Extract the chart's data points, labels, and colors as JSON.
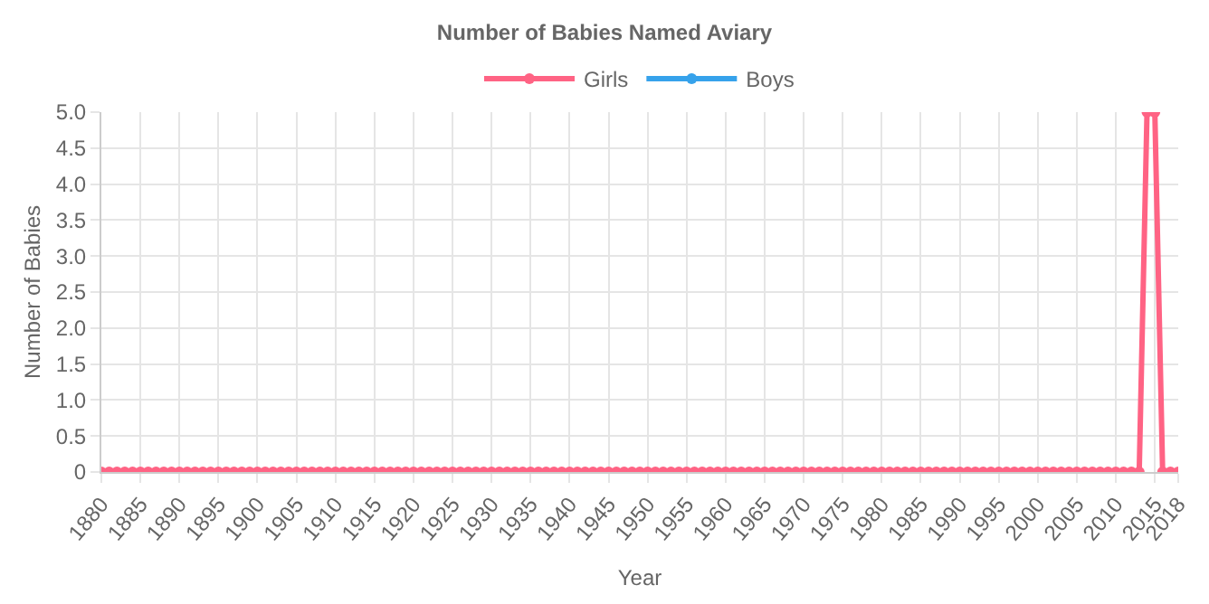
{
  "chart_data": {
    "type": "line",
    "title": "Number of Babies Named Aviary",
    "xlabel": "Year",
    "ylabel": "Number of Babies",
    "x": [
      1880,
      1881,
      1882,
      1883,
      1884,
      1885,
      1886,
      1887,
      1888,
      1889,
      1890,
      1891,
      1892,
      1893,
      1894,
      1895,
      1896,
      1897,
      1898,
      1899,
      1900,
      1901,
      1902,
      1903,
      1904,
      1905,
      1906,
      1907,
      1908,
      1909,
      1910,
      1911,
      1912,
      1913,
      1914,
      1915,
      1916,
      1917,
      1918,
      1919,
      1920,
      1921,
      1922,
      1923,
      1924,
      1925,
      1926,
      1927,
      1928,
      1929,
      1930,
      1931,
      1932,
      1933,
      1934,
      1935,
      1936,
      1937,
      1938,
      1939,
      1940,
      1941,
      1942,
      1943,
      1944,
      1945,
      1946,
      1947,
      1948,
      1949,
      1950,
      1951,
      1952,
      1953,
      1954,
      1955,
      1956,
      1957,
      1958,
      1959,
      1960,
      1961,
      1962,
      1963,
      1964,
      1965,
      1966,
      1967,
      1968,
      1969,
      1970,
      1971,
      1972,
      1973,
      1974,
      1975,
      1976,
      1977,
      1978,
      1979,
      1980,
      1981,
      1982,
      1983,
      1984,
      1985,
      1986,
      1987,
      1988,
      1989,
      1990,
      1991,
      1992,
      1993,
      1994,
      1995,
      1996,
      1997,
      1998,
      1999,
      2000,
      2001,
      2002,
      2003,
      2004,
      2005,
      2006,
      2007,
      2008,
      2009,
      2010,
      2011,
      2012,
      2013,
      2014,
      2015,
      2016,
      2017,
      2018
    ],
    "series": [
      {
        "name": "Girls",
        "color": "#ff6384",
        "values": [
          0,
          0,
          0,
          0,
          0,
          0,
          0,
          0,
          0,
          0,
          0,
          0,
          0,
          0,
          0,
          0,
          0,
          0,
          0,
          0,
          0,
          0,
          0,
          0,
          0,
          0,
          0,
          0,
          0,
          0,
          0,
          0,
          0,
          0,
          0,
          0,
          0,
          0,
          0,
          0,
          0,
          0,
          0,
          0,
          0,
          0,
          0,
          0,
          0,
          0,
          0,
          0,
          0,
          0,
          0,
          0,
          0,
          0,
          0,
          0,
          0,
          0,
          0,
          0,
          0,
          0,
          0,
          0,
          0,
          0,
          0,
          0,
          0,
          0,
          0,
          0,
          0,
          0,
          0,
          0,
          0,
          0,
          0,
          0,
          0,
          0,
          0,
          0,
          0,
          0,
          0,
          0,
          0,
          0,
          0,
          0,
          0,
          0,
          0,
          0,
          0,
          0,
          0,
          0,
          0,
          0,
          0,
          0,
          0,
          0,
          0,
          0,
          0,
          0,
          0,
          0,
          0,
          0,
          0,
          0,
          0,
          0,
          0,
          0,
          0,
          0,
          0,
          0,
          0,
          0,
          0,
          0,
          0,
          0,
          5,
          5,
          0,
          0,
          0
        ]
      },
      {
        "name": "Boys",
        "color": "#36a2eb",
        "values": [
          null,
          null,
          null,
          null,
          null,
          null,
          null,
          null,
          null,
          null,
          null,
          null,
          null,
          null,
          null,
          null,
          null,
          null,
          null,
          null,
          null,
          null,
          null,
          null,
          null,
          null,
          null,
          null,
          null,
          null,
          null,
          null,
          null,
          null,
          null,
          null,
          null,
          null,
          null,
          null,
          null,
          null,
          null,
          null,
          null,
          null,
          null,
          null,
          null,
          null,
          null,
          null,
          null,
          null,
          null,
          null,
          null,
          null,
          null,
          null,
          null,
          null,
          null,
          null,
          null,
          null,
          null,
          null,
          null,
          null,
          null,
          null,
          null,
          null,
          null,
          null,
          null,
          null,
          null,
          null,
          null,
          null,
          null,
          null,
          null,
          null,
          null,
          null,
          null,
          null,
          null,
          null,
          null,
          null,
          null,
          null,
          null,
          null,
          null,
          null,
          null,
          null,
          null,
          null,
          null,
          null,
          null,
          null,
          null,
          null,
          null,
          null,
          null,
          null,
          null,
          null,
          null,
          null,
          null,
          null,
          null,
          null,
          null,
          null,
          null,
          null,
          null,
          null,
          null,
          null,
          null,
          null,
          null,
          null,
          null,
          null,
          null,
          null,
          null
        ]
      }
    ],
    "xlim": [
      1880,
      2018
    ],
    "xticks": [
      1880,
      1885,
      1890,
      1895,
      1900,
      1905,
      1910,
      1915,
      1920,
      1925,
      1930,
      1935,
      1940,
      1945,
      1950,
      1955,
      1960,
      1965,
      1970,
      1975,
      1980,
      1985,
      1990,
      1995,
      2000,
      2005,
      2010,
      2015,
      2018
    ],
    "ylim": [
      0,
      5
    ],
    "yticks": [
      {
        "value": 0,
        "label": "0"
      },
      {
        "value": 0.5,
        "label": "0.5"
      },
      {
        "value": 1,
        "label": "1.0"
      },
      {
        "value": 1.5,
        "label": "1.5"
      },
      {
        "value": 2,
        "label": "2.0"
      },
      {
        "value": 2.5,
        "label": "2.5"
      },
      {
        "value": 3,
        "label": "3.0"
      },
      {
        "value": 3.5,
        "label": "3.5"
      },
      {
        "value": 4,
        "label": "4.0"
      },
      {
        "value": 4.5,
        "label": "4.5"
      },
      {
        "value": 5,
        "label": "5.0"
      }
    ],
    "grid": true,
    "legend": "top",
    "marker": "circle",
    "line_style": "solid"
  }
}
